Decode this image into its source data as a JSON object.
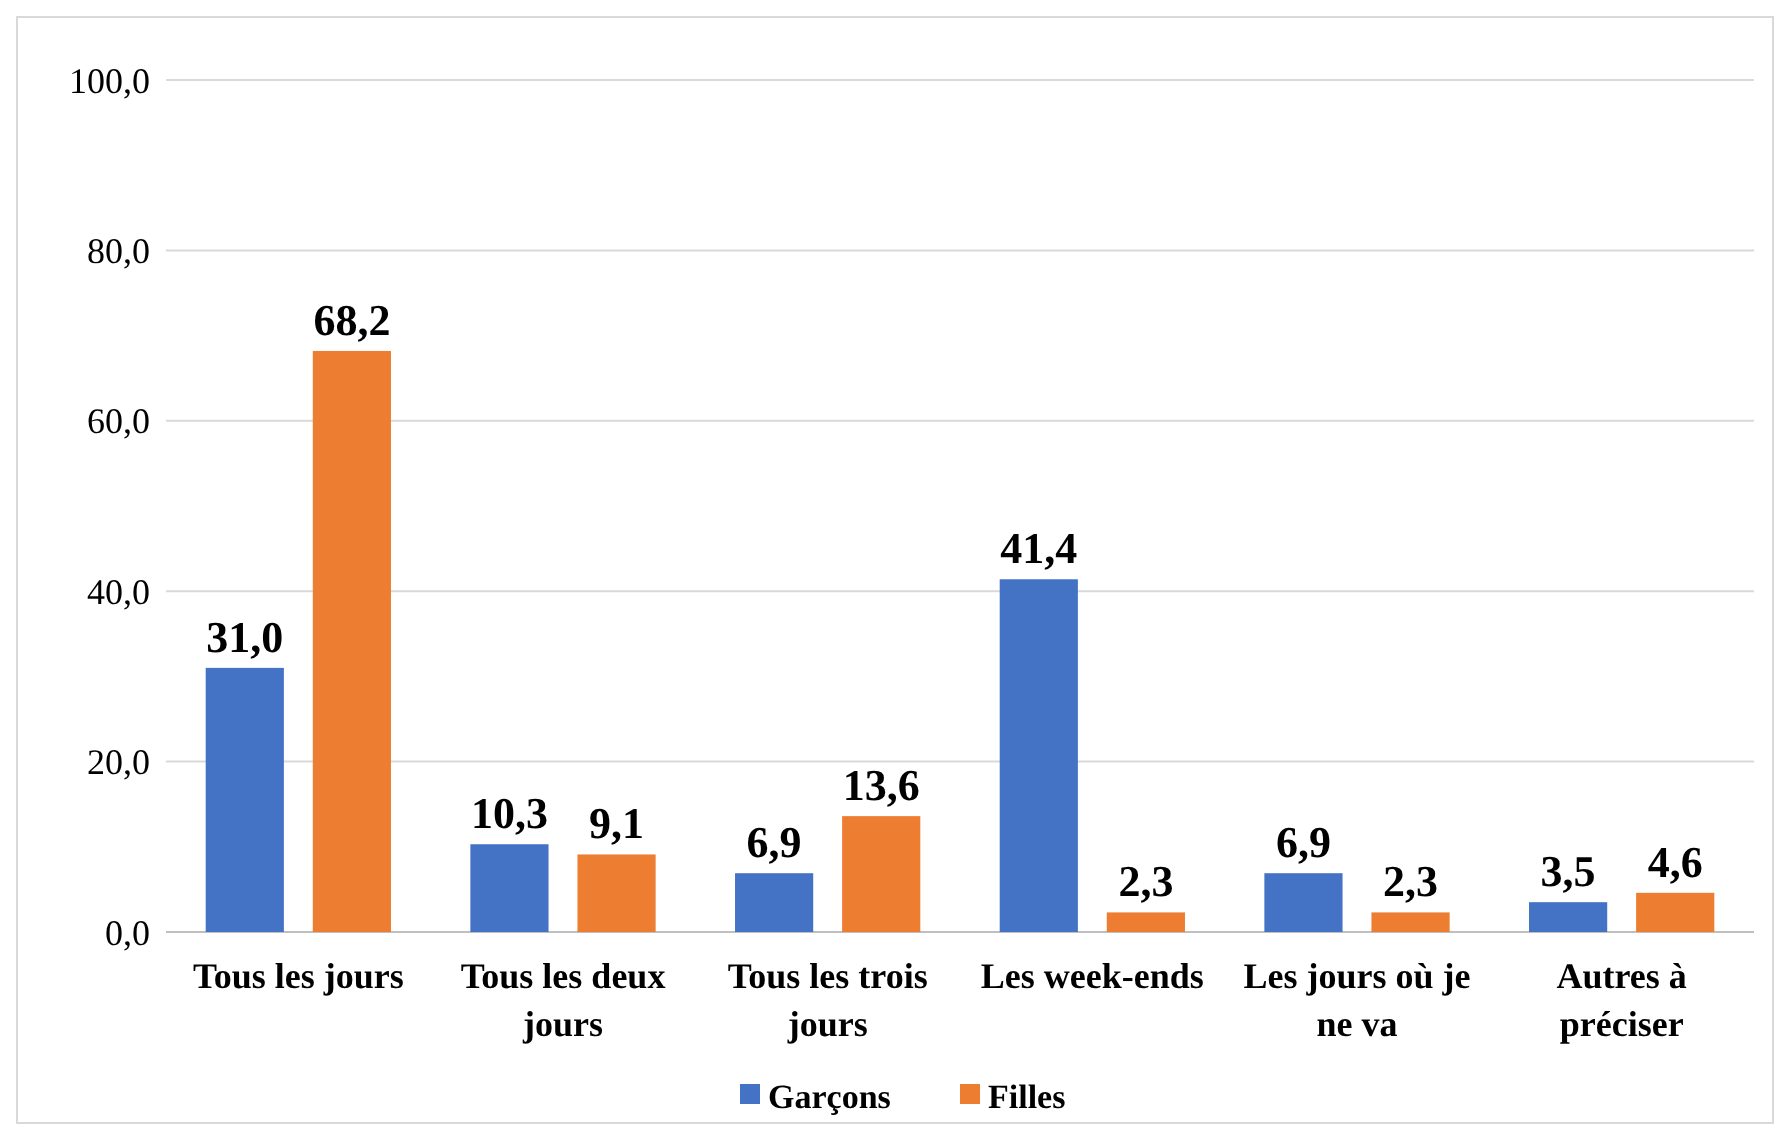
{
  "chart_data": {
    "type": "bar",
    "categories": [
      "Tous les jours",
      "Tous les deux jours",
      "Tous les trois jours",
      "Les week-ends",
      "Les jours où je ne va",
      "Autres à préciser"
    ],
    "series": [
      {
        "name": "Garçons",
        "color": "#4472c4",
        "values": [
          31.0,
          10.3,
          6.9,
          41.4,
          6.9,
          3.5
        ],
        "value_labels": [
          "31,0",
          "10,3",
          "6,9",
          "41,4",
          "6,9",
          "3,5"
        ]
      },
      {
        "name": "Filles",
        "color": "#ed7d31",
        "values": [
          68.2,
          9.1,
          13.6,
          2.3,
          2.3,
          4.6
        ],
        "value_labels": [
          "68,2",
          "9,1",
          "13,6",
          "2,3",
          "2,3",
          "4,6"
        ]
      }
    ],
    "ylim": [
      0,
      100
    ],
    "yticks": [
      {
        "value": 0,
        "label": "0,0"
      },
      {
        "value": 20,
        "label": "20,0"
      },
      {
        "value": 40,
        "label": "40,0"
      },
      {
        "value": 60,
        "label": "60,0"
      },
      {
        "value": 80,
        "label": "80,0"
      },
      {
        "value": 100,
        "label": "100,0"
      }
    ],
    "grid": "y",
    "legend": "bottom"
  }
}
